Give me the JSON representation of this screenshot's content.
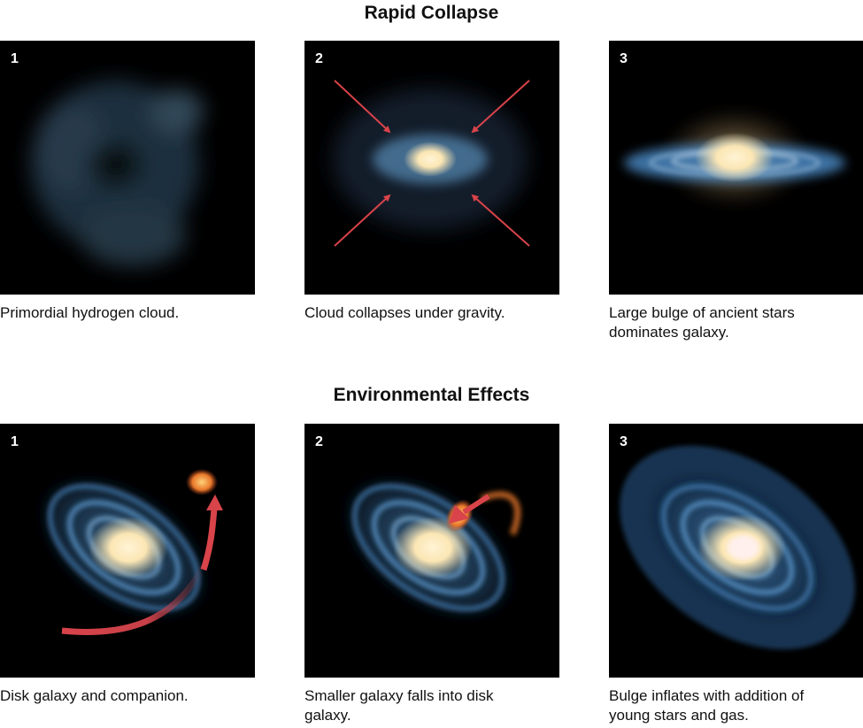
{
  "sections": [
    {
      "title": "Rapid Collapse",
      "panels": [
        {
          "number": "1",
          "caption": "Primordial hydrogen cloud."
        },
        {
          "number": "2",
          "caption": "Cloud collapses under gravity."
        },
        {
          "number": "3",
          "caption": "Large bulge of ancient stars dominates galaxy."
        }
      ]
    },
    {
      "title": "Environmental Effects",
      "panels": [
        {
          "number": "1",
          "caption": "Disk galaxy and companion."
        },
        {
          "number": "2",
          "caption": "Smaller galaxy falls into disk galaxy."
        },
        {
          "number": "3",
          "caption": "Bulge inflates with addition of young stars and gas."
        }
      ]
    }
  ],
  "colors": {
    "arrow": "#d9434a",
    "disk": "#4a86c0",
    "bulge": "#fff1c8",
    "companion": "#f08a2c"
  }
}
